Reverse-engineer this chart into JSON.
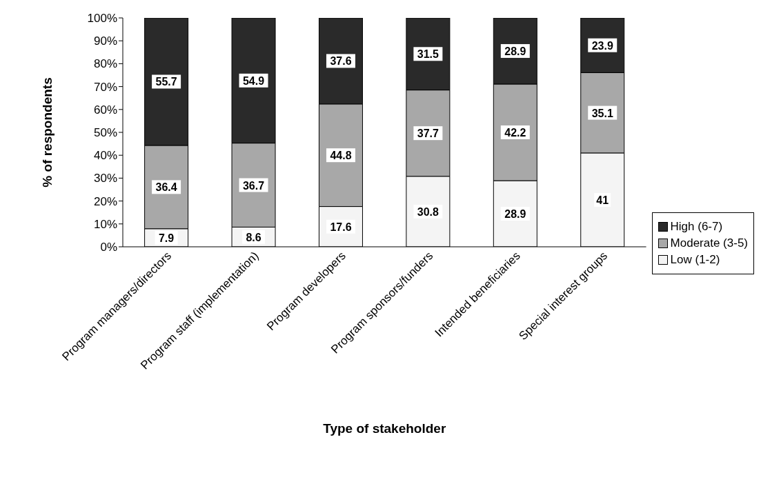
{
  "chart_data": {
    "type": "bar",
    "stacked": true,
    "xlabel": "Type of stakeholder",
    "ylabel": "% of respondents",
    "categories": [
      "Program managers/directors",
      "Program staff (implementation)",
      "Program developers",
      "Program sponsors/funders",
      "Intended beneficiaries",
      "Special interest groups"
    ],
    "series": [
      {
        "name": "Low (1-2)",
        "color": "#f4f4f4",
        "values": [
          7.9,
          8.6,
          17.6,
          30.8,
          28.9,
          41
        ]
      },
      {
        "name": "Moderate (3-5)",
        "color": "#a8a8a8",
        "values": [
          36.4,
          36.7,
          44.8,
          37.7,
          42.2,
          35.1
        ]
      },
      {
        "name": "High (6-7)",
        "color": "#2a2a2a",
        "values": [
          55.7,
          54.9,
          37.6,
          31.5,
          28.9,
          23.9
        ]
      }
    ],
    "ylim": [
      0,
      100
    ],
    "yticks": [
      {
        "value": 0,
        "label": "0%"
      },
      {
        "value": 10,
        "label": "10%"
      },
      {
        "value": 20,
        "label": "20%"
      },
      {
        "value": 30,
        "label": "30%"
      },
      {
        "value": 40,
        "label": "40%"
      },
      {
        "value": 50,
        "label": "50%"
      },
      {
        "value": 60,
        "label": "60%"
      },
      {
        "value": 70,
        "label": "70%"
      },
      {
        "value": 80,
        "label": "80%"
      },
      {
        "value": 90,
        "label": "90%"
      },
      {
        "value": 100,
        "label": "100%"
      }
    ],
    "grid": false,
    "legend": "right",
    "data_labels": true
  }
}
